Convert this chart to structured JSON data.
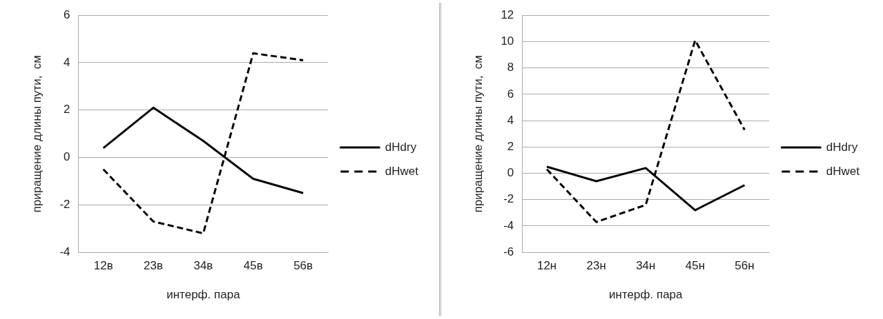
{
  "chart_data": [
    {
      "type": "line",
      "xlabel": "интерф. пара",
      "ylabel": "приращение длины пути,  см",
      "categories": [
        "12в",
        "23в",
        "34в",
        "45в",
        "56в"
      ],
      "series": [
        {
          "name": "dHdry",
          "color": "#000000",
          "line_style": "solid",
          "values": [
            0.4,
            2.1,
            0.7,
            -0.9,
            -1.5
          ]
        },
        {
          "name": "dHwet",
          "color": "#000000",
          "line_style": "dashed",
          "values": [
            -0.5,
            -2.7,
            -3.2,
            4.4,
            4.1
          ]
        }
      ],
      "ylim": [
        -4,
        6
      ],
      "yticks": [
        -4,
        -2,
        0,
        2,
        4,
        6
      ],
      "grid": "y",
      "legend": "right",
      "marker": "none"
    },
    {
      "type": "line",
      "xlabel": "интерф. пара",
      "ylabel": "приращение длины пути,  см",
      "categories": [
        "12н",
        "23н",
        "34н",
        "45н",
        "56н"
      ],
      "series": [
        {
          "name": "dHdry",
          "color": "#000000",
          "line_style": "solid",
          "values": [
            0.5,
            -0.6,
            0.4,
            -2.8,
            -0.9
          ]
        },
        {
          "name": "dHwet",
          "color": "#000000",
          "line_style": "dashed",
          "values": [
            0.3,
            -3.7,
            -2.4,
            10.1,
            3.3
          ]
        }
      ],
      "ylim": [
        -6,
        12
      ],
      "yticks": [
        -6,
        -4,
        -2,
        0,
        2,
        4,
        6,
        8,
        10,
        12
      ],
      "grid": "y",
      "legend": "right",
      "marker": "none"
    }
  ]
}
